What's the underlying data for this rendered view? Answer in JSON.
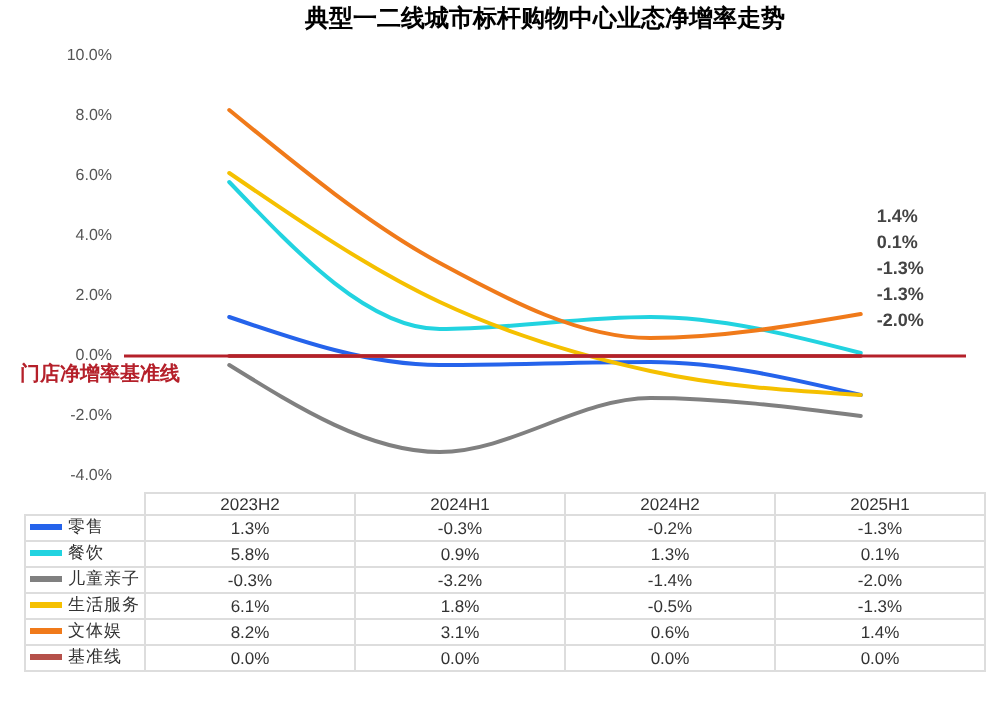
{
  "chart_data": {
    "type": "line",
    "title": "典型一二线城市标杆购物中心业态净增率走势",
    "categories": [
      "2023H2",
      "2024H1",
      "2024H2",
      "2025H1"
    ],
    "series": [
      {
        "name": "零售",
        "color": "#2563eb",
        "values": [
          1.3,
          -0.3,
          -0.2,
          -1.3
        ],
        "value_labels": [
          "1.3%",
          "-0.3%",
          "-0.2%",
          "-1.3%"
        ]
      },
      {
        "name": "餐饮",
        "color": "#22d3e0",
        "values": [
          5.8,
          0.9,
          1.3,
          0.1
        ],
        "value_labels": [
          "5.8%",
          "0.9%",
          "1.3%",
          "0.1%"
        ]
      },
      {
        "name": "儿童亲子",
        "color": "#808080",
        "values": [
          -0.3,
          -3.2,
          -1.4,
          -2.0
        ],
        "value_labels": [
          "-0.3%",
          "-3.2%",
          "-1.4%",
          "-2.0%"
        ]
      },
      {
        "name": "生活服务",
        "color": "#f5c000",
        "values": [
          6.1,
          1.8,
          -0.5,
          -1.3
        ],
        "value_labels": [
          "6.1%",
          "1.8%",
          "-0.5%",
          "-1.3%"
        ]
      },
      {
        "name": "文体娱",
        "color": "#f07a1a",
        "values": [
          8.2,
          3.1,
          0.6,
          1.4
        ],
        "value_labels": [
          "8.2%",
          "3.1%",
          "0.6%",
          "1.4%"
        ]
      },
      {
        "name": "基准线",
        "color": "#b5504a",
        "values": [
          0.0,
          0.0,
          0.0,
          0.0
        ],
        "value_labels": [
          "0.0%",
          "0.0%",
          "0.0%",
          "0.0%"
        ]
      }
    ],
    "ylim": [
      -4,
      10
    ],
    "yticks": [
      {
        "value": -4,
        "label": "-4.0%"
      },
      {
        "value": -2,
        "label": "-2.0%"
      },
      {
        "value": 0,
        "label": "0.0%"
      },
      {
        "value": 2,
        "label": "2.0%"
      },
      {
        "value": 4,
        "label": "4.0%"
      },
      {
        "value": 6,
        "label": "6.0%"
      },
      {
        "value": 8,
        "label": "8.0%"
      },
      {
        "value": 10,
        "label": "10.0%"
      }
    ],
    "ref_lines": [
      {
        "axis": "y",
        "value": 0,
        "label": "门店净增率基准线",
        "color": "#b5202a"
      }
    ],
    "annotations": [
      "1.4%",
      "0.1%",
      "-1.3%",
      "-1.3%",
      "-2.0%"
    ],
    "tick_labels": "y",
    "legend": "bottom"
  }
}
